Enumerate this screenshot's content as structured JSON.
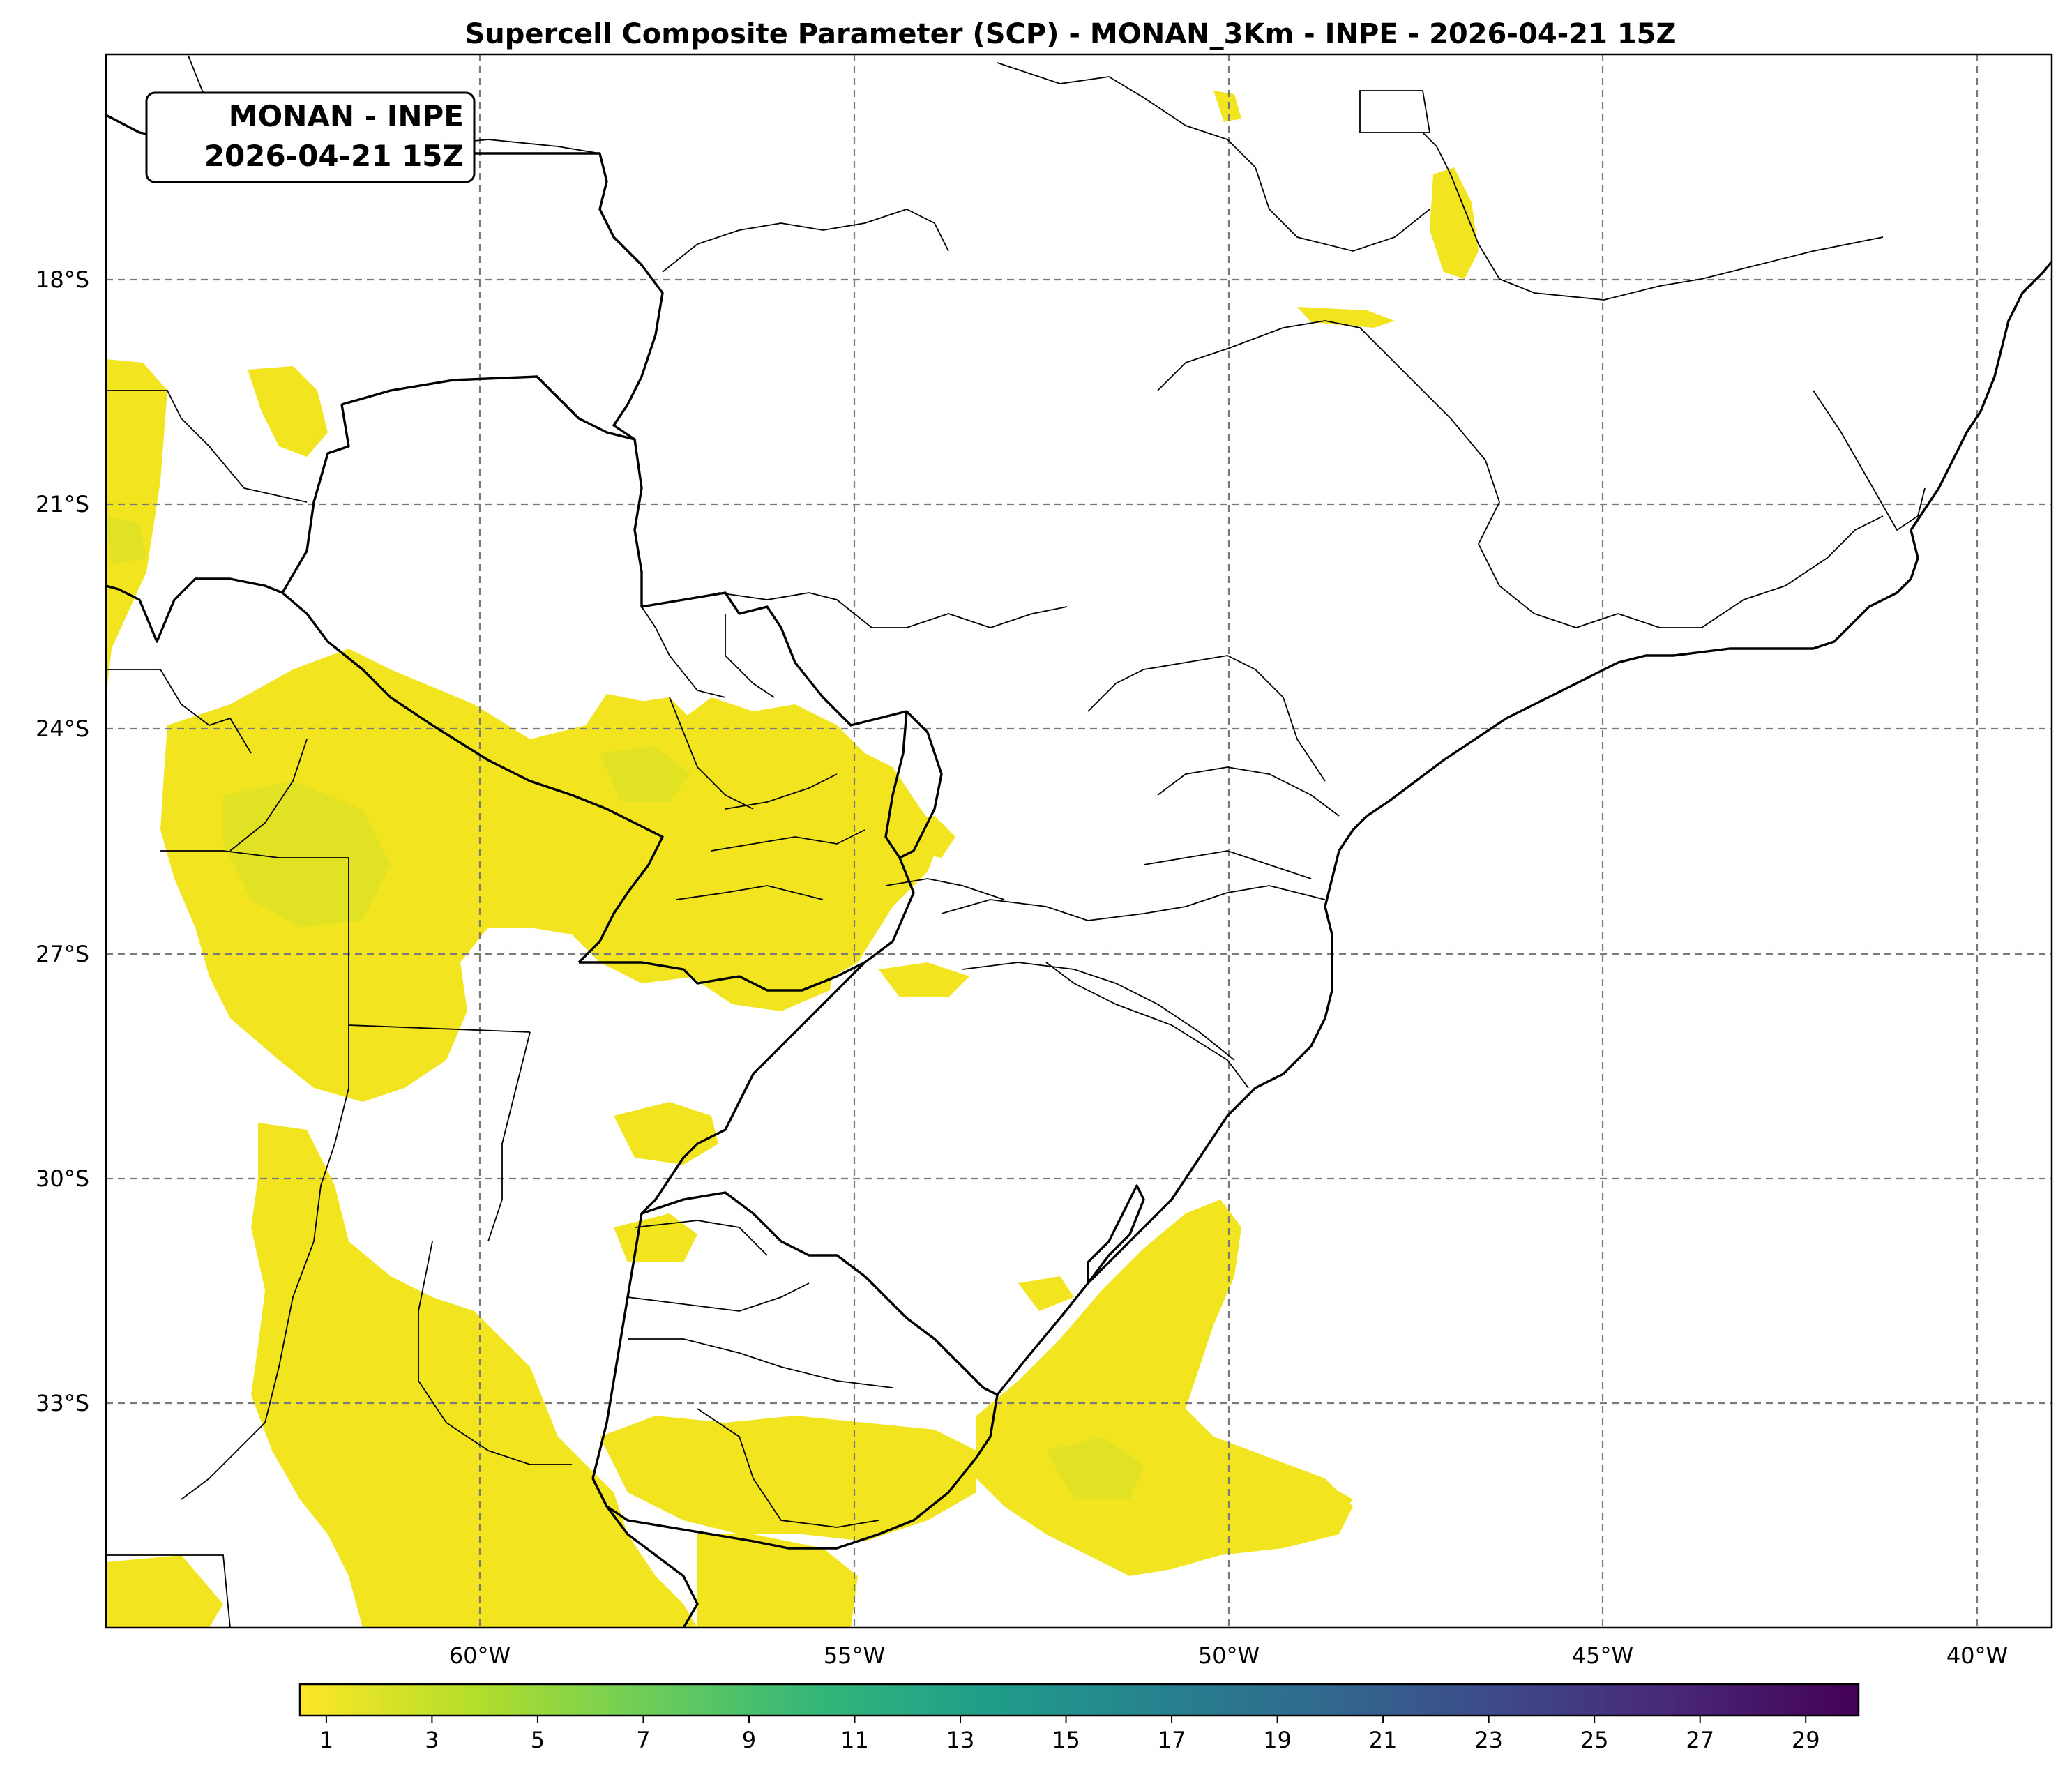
{
  "title": "Supercell Composite Parameter (SCP) - MONAN_3Km - INPE - 2026-04-21 15Z",
  "label_box": {
    "line1": "MONAN - INPE",
    "line2": "2026-04-21 15Z"
  },
  "map": {
    "lon_range": [
      -65,
      -39
    ],
    "lat_range": [
      -36,
      -15
    ],
    "lon_ticks": [
      {
        "value": -60,
        "label": "60°W"
      },
      {
        "value": -55,
        "label": "55°W"
      },
      {
        "value": -50,
        "label": "50°W"
      },
      {
        "value": -45,
        "label": "45°W"
      },
      {
        "value": -40,
        "label": "40°W"
      }
    ],
    "lat_ticks": [
      {
        "value": -18,
        "label": "18°S"
      },
      {
        "value": -21,
        "label": "21°S"
      },
      {
        "value": -24,
        "label": "24°S"
      },
      {
        "value": -27,
        "label": "27°S"
      },
      {
        "value": -30,
        "label": "30°S"
      },
      {
        "value": -33,
        "label": "33°S"
      }
    ],
    "grid": true,
    "field_color": "#f2e51f"
  },
  "colorbar": {
    "min": 0.5,
    "max": 30,
    "tick_labels": [
      "1",
      "3",
      "5",
      "7",
      "9",
      "11",
      "13",
      "15",
      "17",
      "19",
      "21",
      "23",
      "25",
      "27",
      "29"
    ],
    "colors": [
      "#fde725",
      "#b5de2b",
      "#6ece58",
      "#35b779",
      "#1f9e89",
      "#26828e",
      "#31688e",
      "#3e4989",
      "#482878",
      "#440154"
    ]
  }
}
